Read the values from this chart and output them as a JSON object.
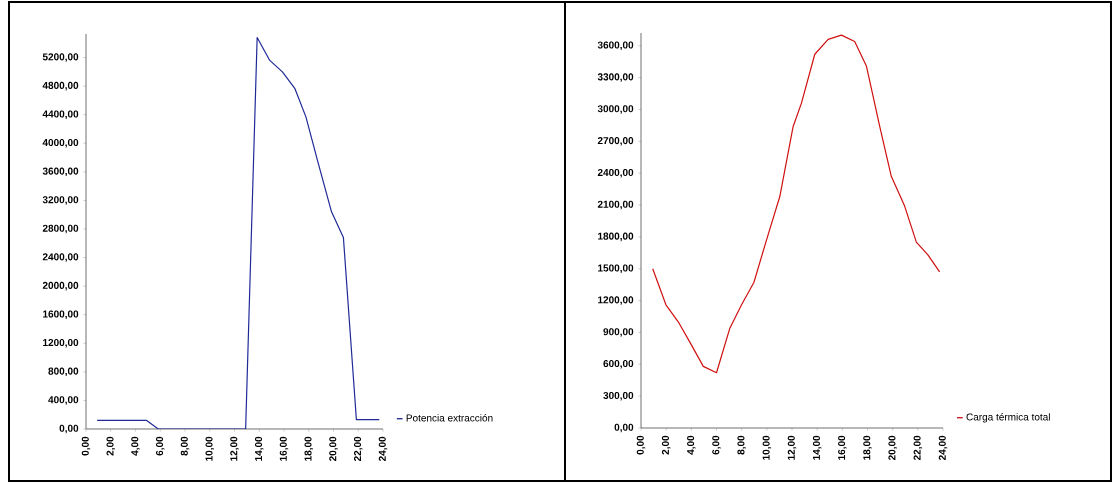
{
  "chart_data": [
    {
      "type": "line",
      "x": [
        0.9,
        4.9,
        5.84,
        12.9,
        13.83,
        14.85,
        15.87,
        16.87,
        17.77,
        18.77,
        19.84,
        20.8,
        21.85,
        23.7
      ],
      "series": [
        {
          "name": "Potencia extracción",
          "color": "#1f2a96",
          "values": [
            120,
            120,
            0,
            0,
            5480,
            5160,
            5000,
            4770,
            4370,
            3720,
            3040,
            2680,
            130,
            130
          ]
        }
      ],
      "xlim": [
        0,
        24
      ],
      "xticks": [
        {
          "value": 0,
          "label": "0,00"
        },
        {
          "value": 2,
          "label": "2,00"
        },
        {
          "value": 4,
          "label": "4,00"
        },
        {
          "value": 6,
          "label": "6,00"
        },
        {
          "value": 8,
          "label": "8,00"
        },
        {
          "value": 10,
          "label": "10,00"
        },
        {
          "value": 12,
          "label": "12,00"
        },
        {
          "value": 14,
          "label": "14,00"
        },
        {
          "value": 16,
          "label": "16,00"
        },
        {
          "value": 18,
          "label": "18,00"
        },
        {
          "value": 20,
          "label": "20,00"
        },
        {
          "value": 22,
          "label": "22,00"
        },
        {
          "value": 24,
          "label": "24,00"
        }
      ],
      "ylim": [
        0,
        5530
      ],
      "yticks": [
        {
          "value": 0,
          "label": "0,00"
        },
        {
          "value": 400,
          "label": "400,00"
        },
        {
          "value": 800,
          "label": "800,00"
        },
        {
          "value": 1200,
          "label": "1200,00"
        },
        {
          "value": 1600,
          "label": "1600,00"
        },
        {
          "value": 2000,
          "label": "2000,00"
        },
        {
          "value": 2400,
          "label": "2400,00"
        },
        {
          "value": 2800,
          "label": "2800,00"
        },
        {
          "value": 3200,
          "label": "3200,00"
        },
        {
          "value": 3600,
          "label": "3600,00"
        },
        {
          "value": 4000,
          "label": "4000,00"
        },
        {
          "value": 4400,
          "label": "4400,00"
        },
        {
          "value": 4800,
          "label": "4800,00"
        },
        {
          "value": 5200,
          "label": "5200,00"
        }
      ],
      "legend": "bottom right",
      "marker": "none",
      "line_style": "solid"
    },
    {
      "type": "line",
      "x": [
        0.93,
        1.98,
        2.96,
        3.97,
        4.95,
        6.0,
        7.06,
        7.99,
        8.97,
        9.97,
        11.03,
        12.09,
        12.75,
        13.81,
        14.87,
        15.93,
        16.98,
        17.91,
        18.97,
        19.89,
        20.95,
        21.88,
        22.8,
        23.73
      ],
      "series": [
        {
          "name": "Carga térmica total",
          "color": "#d01010",
          "values": [
            1500,
            1160,
            1000,
            790,
            580,
            520,
            940,
            1160,
            1370,
            1770,
            2180,
            2840,
            3060,
            3520,
            3660,
            3700,
            3640,
            3410,
            2840,
            2370,
            2090,
            1750,
            1630,
            1470
          ]
        }
      ],
      "xlim": [
        0,
        24
      ],
      "xticks": [
        {
          "value": 0,
          "label": "0,00"
        },
        {
          "value": 2,
          "label": "2,00"
        },
        {
          "value": 4,
          "label": "4,00"
        },
        {
          "value": 6,
          "label": "6,00"
        },
        {
          "value": 8,
          "label": "8,00"
        },
        {
          "value": 10,
          "label": "10,00"
        },
        {
          "value": 12,
          "label": "12,00"
        },
        {
          "value": 14,
          "label": "14,00"
        },
        {
          "value": 16,
          "label": "16,00"
        },
        {
          "value": 18,
          "label": "18,00"
        },
        {
          "value": 20,
          "label": "20,00"
        },
        {
          "value": 22,
          "label": "22,00"
        },
        {
          "value": 24,
          "label": "24,00"
        }
      ],
      "ylim": [
        0,
        3720
      ],
      "yticks": [
        {
          "value": 0,
          "label": "0,00"
        },
        {
          "value": 300,
          "label": "300,00"
        },
        {
          "value": 600,
          "label": "600,00"
        },
        {
          "value": 900,
          "label": "900,00"
        },
        {
          "value": 1200,
          "label": "1200,00"
        },
        {
          "value": 1500,
          "label": "1500,00"
        },
        {
          "value": 1800,
          "label": "1800,00"
        },
        {
          "value": 2100,
          "label": "2100,00"
        },
        {
          "value": 2400,
          "label": "2400,00"
        },
        {
          "value": 2700,
          "label": "2700,00"
        },
        {
          "value": 3000,
          "label": "3000,00"
        },
        {
          "value": 3300,
          "label": "3300,00"
        },
        {
          "value": 3600,
          "label": "3600,00"
        }
      ],
      "legend": "bottom right",
      "marker": "none",
      "line_style": "solid"
    }
  ]
}
